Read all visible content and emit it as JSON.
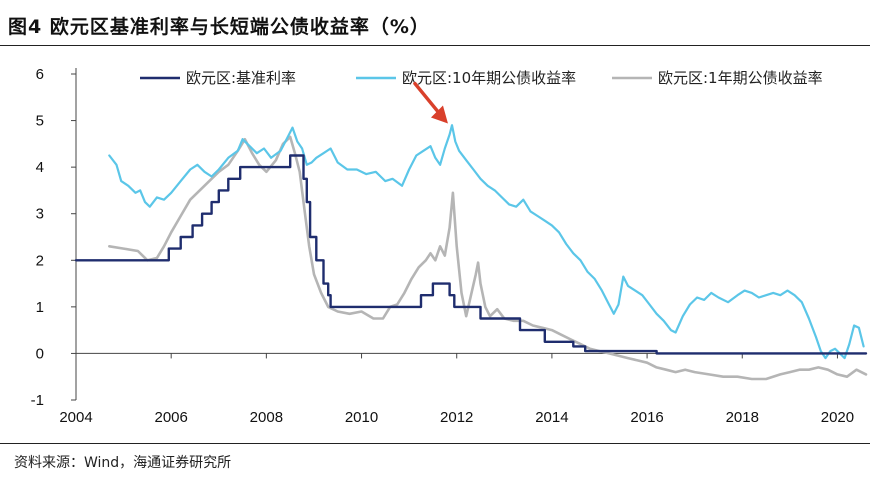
{
  "title": "图4  欧元区基准利率与长短端公债收益率（%）",
  "source": "资料来源：Wind，海通证券研究所",
  "colors": {
    "policy": "#1f2d6e",
    "ten_year": "#5bc6e8",
    "one_year": "#b5b5b5",
    "arrow": "#d9402b"
  },
  "chart_data": {
    "type": "line",
    "title": "",
    "xlabel": "",
    "ylabel": "",
    "xlim": [
      2004,
      2020.6
    ],
    "ylim": [
      -1,
      6
    ],
    "xticks": [
      2004,
      2006,
      2008,
      2010,
      2012,
      2014,
      2016,
      2018,
      2020
    ],
    "yticks": [
      -1,
      0,
      1,
      2,
      3,
      4,
      5,
      6
    ],
    "xtick_labels": [
      "2004",
      "2006",
      "2008",
      "2010",
      "2012",
      "2014",
      "2016",
      "2018",
      "2020"
    ],
    "ytick_labels": [
      "-1",
      "0",
      "1",
      "2",
      "3",
      "4",
      "5",
      "6"
    ],
    "legend_position": "top",
    "annotation": {
      "type": "arrow",
      "x": 2011.9,
      "y": 4.85
    },
    "series": [
      {
        "name": "欧元区:基准利率",
        "step": true,
        "points": [
          [
            2004,
            2.0
          ],
          [
            2005.95,
            2.0
          ],
          [
            2005.95,
            2.25
          ],
          [
            2006.2,
            2.25
          ],
          [
            2006.2,
            2.5
          ],
          [
            2006.45,
            2.5
          ],
          [
            2006.45,
            2.75
          ],
          [
            2006.65,
            2.75
          ],
          [
            2006.65,
            3.0
          ],
          [
            2006.85,
            3.0
          ],
          [
            2006.85,
            3.25
          ],
          [
            2007.0,
            3.25
          ],
          [
            2007.0,
            3.5
          ],
          [
            2007.2,
            3.5
          ],
          [
            2007.2,
            3.75
          ],
          [
            2007.45,
            3.75
          ],
          [
            2007.45,
            4.0
          ],
          [
            2008.5,
            4.0
          ],
          [
            2008.5,
            4.25
          ],
          [
            2008.78,
            4.25
          ],
          [
            2008.78,
            3.75
          ],
          [
            2008.85,
            3.75
          ],
          [
            2008.85,
            3.25
          ],
          [
            2008.92,
            3.25
          ],
          [
            2008.92,
            2.5
          ],
          [
            2009.05,
            2.5
          ],
          [
            2009.05,
            2.0
          ],
          [
            2009.2,
            2.0
          ],
          [
            2009.2,
            1.5
          ],
          [
            2009.3,
            1.5
          ],
          [
            2009.3,
            1.25
          ],
          [
            2009.35,
            1.25
          ],
          [
            2009.35,
            1.0
          ],
          [
            2011.25,
            1.0
          ],
          [
            2011.25,
            1.25
          ],
          [
            2011.5,
            1.25
          ],
          [
            2011.5,
            1.5
          ],
          [
            2011.85,
            1.5
          ],
          [
            2011.85,
            1.25
          ],
          [
            2011.95,
            1.25
          ],
          [
            2011.95,
            1.0
          ],
          [
            2012.5,
            1.0
          ],
          [
            2012.5,
            0.75
          ],
          [
            2013.33,
            0.75
          ],
          [
            2013.33,
            0.5
          ],
          [
            2013.85,
            0.5
          ],
          [
            2013.85,
            0.25
          ],
          [
            2014.45,
            0.25
          ],
          [
            2014.45,
            0.15
          ],
          [
            2014.7,
            0.15
          ],
          [
            2014.7,
            0.05
          ],
          [
            2016.2,
            0.05
          ],
          [
            2016.2,
            0.0
          ],
          [
            2020.6,
            0.0
          ]
        ]
      },
      {
        "name": "欧元区:10年期公债收益率",
        "points": [
          [
            2004.7,
            4.25
          ],
          [
            2004.85,
            4.05
          ],
          [
            2004.95,
            3.7
          ],
          [
            2005.1,
            3.6
          ],
          [
            2005.25,
            3.45
          ],
          [
            2005.35,
            3.5
          ],
          [
            2005.45,
            3.25
          ],
          [
            2005.55,
            3.15
          ],
          [
            2005.7,
            3.35
          ],
          [
            2005.85,
            3.3
          ],
          [
            2006.0,
            3.45
          ],
          [
            2006.2,
            3.7
          ],
          [
            2006.4,
            3.95
          ],
          [
            2006.55,
            4.05
          ],
          [
            2006.7,
            3.9
          ],
          [
            2006.85,
            3.8
          ],
          [
            2007.0,
            3.95
          ],
          [
            2007.2,
            4.2
          ],
          [
            2007.4,
            4.35
          ],
          [
            2007.5,
            4.6
          ],
          [
            2007.65,
            4.45
          ],
          [
            2007.8,
            4.3
          ],
          [
            2007.95,
            4.4
          ],
          [
            2008.1,
            4.2
          ],
          [
            2008.3,
            4.35
          ],
          [
            2008.45,
            4.65
          ],
          [
            2008.55,
            4.85
          ],
          [
            2008.65,
            4.55
          ],
          [
            2008.75,
            4.4
          ],
          [
            2008.85,
            4.05
          ],
          [
            2008.95,
            4.1
          ],
          [
            2009.05,
            4.2
          ],
          [
            2009.2,
            4.3
          ],
          [
            2009.35,
            4.4
          ],
          [
            2009.5,
            4.1
          ],
          [
            2009.7,
            3.95
          ],
          [
            2009.9,
            3.95
          ],
          [
            2010.1,
            3.85
          ],
          [
            2010.3,
            3.9
          ],
          [
            2010.5,
            3.7
          ],
          [
            2010.65,
            3.75
          ],
          [
            2010.85,
            3.6
          ],
          [
            2011.0,
            3.95
          ],
          [
            2011.15,
            4.25
          ],
          [
            2011.3,
            4.35
          ],
          [
            2011.45,
            4.45
          ],
          [
            2011.55,
            4.2
          ],
          [
            2011.65,
            4.05
          ],
          [
            2011.75,
            4.4
          ],
          [
            2011.85,
            4.7
          ],
          [
            2011.9,
            4.9
          ],
          [
            2011.97,
            4.55
          ],
          [
            2012.05,
            4.35
          ],
          [
            2012.2,
            4.15
          ],
          [
            2012.35,
            3.95
          ],
          [
            2012.5,
            3.75
          ],
          [
            2012.65,
            3.6
          ],
          [
            2012.8,
            3.5
          ],
          [
            2012.95,
            3.35
          ],
          [
            2013.1,
            3.2
          ],
          [
            2013.25,
            3.15
          ],
          [
            2013.4,
            3.3
          ],
          [
            2013.55,
            3.05
          ],
          [
            2013.7,
            2.95
          ],
          [
            2013.85,
            2.85
          ],
          [
            2014.0,
            2.75
          ],
          [
            2014.15,
            2.6
          ],
          [
            2014.3,
            2.35
          ],
          [
            2014.45,
            2.15
          ],
          [
            2014.6,
            2.0
          ],
          [
            2014.75,
            1.75
          ],
          [
            2014.9,
            1.6
          ],
          [
            2015.05,
            1.35
          ],
          [
            2015.2,
            1.05
          ],
          [
            2015.3,
            0.85
          ],
          [
            2015.4,
            1.05
          ],
          [
            2015.5,
            1.65
          ],
          [
            2015.6,
            1.45
          ],
          [
            2015.75,
            1.35
          ],
          [
            2015.9,
            1.25
          ],
          [
            2016.05,
            1.05
          ],
          [
            2016.2,
            0.85
          ],
          [
            2016.35,
            0.7
          ],
          [
            2016.5,
            0.5
          ],
          [
            2016.6,
            0.45
          ],
          [
            2016.75,
            0.8
          ],
          [
            2016.9,
            1.05
          ],
          [
            2017.05,
            1.2
          ],
          [
            2017.2,
            1.15
          ],
          [
            2017.35,
            1.3
          ],
          [
            2017.5,
            1.2
          ],
          [
            2017.7,
            1.1
          ],
          [
            2017.9,
            1.25
          ],
          [
            2018.05,
            1.35
          ],
          [
            2018.2,
            1.3
          ],
          [
            2018.35,
            1.2
          ],
          [
            2018.5,
            1.25
          ],
          [
            2018.65,
            1.3
          ],
          [
            2018.8,
            1.25
          ],
          [
            2018.95,
            1.35
          ],
          [
            2019.1,
            1.25
          ],
          [
            2019.25,
            1.1
          ],
          [
            2019.4,
            0.75
          ],
          [
            2019.55,
            0.35
          ],
          [
            2019.65,
            0.05
          ],
          [
            2019.75,
            -0.1
          ],
          [
            2019.85,
            0.05
          ],
          [
            2019.95,
            0.1
          ],
          [
            2020.05,
            0.0
          ],
          [
            2020.15,
            -0.1
          ],
          [
            2020.25,
            0.2
          ],
          [
            2020.35,
            0.6
          ],
          [
            2020.45,
            0.55
          ],
          [
            2020.55,
            0.15
          ]
        ]
      },
      {
        "name": "欧元区:1年期公债收益率",
        "points": [
          [
            2004.7,
            2.3
          ],
          [
            2005.0,
            2.25
          ],
          [
            2005.3,
            2.2
          ],
          [
            2005.5,
            2.0
          ],
          [
            2005.7,
            2.05
          ],
          [
            2005.85,
            2.3
          ],
          [
            2006.0,
            2.6
          ],
          [
            2006.2,
            2.95
          ],
          [
            2006.4,
            3.3
          ],
          [
            2006.6,
            3.5
          ],
          [
            2006.8,
            3.7
          ],
          [
            2007.0,
            3.9
          ],
          [
            2007.2,
            4.05
          ],
          [
            2007.4,
            4.35
          ],
          [
            2007.55,
            4.6
          ],
          [
            2007.7,
            4.3
          ],
          [
            2007.85,
            4.05
          ],
          [
            2008.0,
            3.9
          ],
          [
            2008.2,
            4.15
          ],
          [
            2008.35,
            4.5
          ],
          [
            2008.5,
            4.65
          ],
          [
            2008.6,
            4.3
          ],
          [
            2008.7,
            3.9
          ],
          [
            2008.8,
            3.1
          ],
          [
            2008.9,
            2.3
          ],
          [
            2009.0,
            1.7
          ],
          [
            2009.15,
            1.3
          ],
          [
            2009.3,
            1.0
          ],
          [
            2009.5,
            0.9
          ],
          [
            2009.75,
            0.85
          ],
          [
            2010.0,
            0.9
          ],
          [
            2010.25,
            0.75
          ],
          [
            2010.45,
            0.75
          ],
          [
            2010.6,
            1.0
          ],
          [
            2010.75,
            1.05
          ],
          [
            2010.9,
            1.3
          ],
          [
            2011.05,
            1.6
          ],
          [
            2011.2,
            1.85
          ],
          [
            2011.35,
            2.0
          ],
          [
            2011.45,
            2.15
          ],
          [
            2011.55,
            2.0
          ],
          [
            2011.65,
            2.3
          ],
          [
            2011.75,
            2.1
          ],
          [
            2011.85,
            2.7
          ],
          [
            2011.92,
            3.45
          ],
          [
            2012.0,
            2.3
          ],
          [
            2012.1,
            1.3
          ],
          [
            2012.2,
            0.8
          ],
          [
            2012.3,
            1.25
          ],
          [
            2012.4,
            1.7
          ],
          [
            2012.45,
            1.95
          ],
          [
            2012.5,
            1.5
          ],
          [
            2012.6,
            1.0
          ],
          [
            2012.7,
            0.8
          ],
          [
            2012.85,
            0.95
          ],
          [
            2013.0,
            0.75
          ],
          [
            2013.2,
            0.7
          ],
          [
            2013.4,
            0.7
          ],
          [
            2013.6,
            0.6
          ],
          [
            2013.8,
            0.55
          ],
          [
            2014.0,
            0.5
          ],
          [
            2014.2,
            0.4
          ],
          [
            2014.4,
            0.3
          ],
          [
            2014.6,
            0.2
          ],
          [
            2014.8,
            0.1
          ],
          [
            2015.0,
            0.05
          ],
          [
            2015.2,
            0.0
          ],
          [
            2015.4,
            -0.05
          ],
          [
            2015.6,
            -0.1
          ],
          [
            2015.8,
            -0.15
          ],
          [
            2016.0,
            -0.2
          ],
          [
            2016.2,
            -0.3
          ],
          [
            2016.4,
            -0.35
          ],
          [
            2016.6,
            -0.4
          ],
          [
            2016.8,
            -0.35
          ],
          [
            2017.0,
            -0.4
          ],
          [
            2017.3,
            -0.45
          ],
          [
            2017.6,
            -0.5
          ],
          [
            2017.9,
            -0.5
          ],
          [
            2018.2,
            -0.55
          ],
          [
            2018.5,
            -0.55
          ],
          [
            2018.8,
            -0.45
          ],
          [
            2019.0,
            -0.4
          ],
          [
            2019.2,
            -0.35
          ],
          [
            2019.4,
            -0.35
          ],
          [
            2019.6,
            -0.3
          ],
          [
            2019.8,
            -0.35
          ],
          [
            2020.0,
            -0.45
          ],
          [
            2020.2,
            -0.5
          ],
          [
            2020.4,
            -0.35
          ],
          [
            2020.6,
            -0.45
          ]
        ]
      }
    ]
  }
}
